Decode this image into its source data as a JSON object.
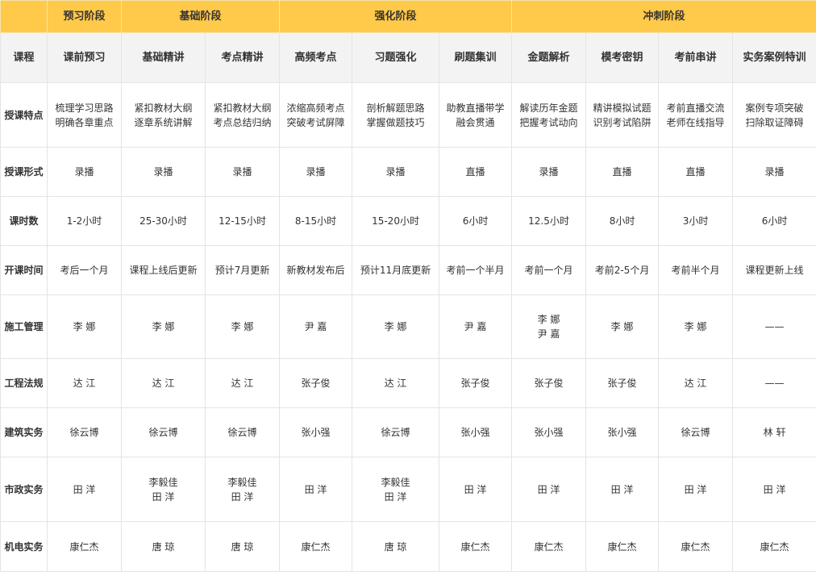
{
  "phases": [
    {
      "label": "",
      "span": 1
    },
    {
      "label": "预习阶段",
      "span": 1
    },
    {
      "label": "基础阶段",
      "span": 2
    },
    {
      "label": "强化阶段",
      "span": 3
    },
    {
      "label": "冲刺阶段",
      "span": 4
    }
  ],
  "course_header": {
    "label": "课程",
    "courses": [
      "课前预习",
      "基础精讲",
      "考点精讲",
      "高频考点",
      "习题强化",
      "刷题集训",
      "金题解析",
      "模考密钥",
      "考前串讲",
      "实务案例特训"
    ]
  },
  "rows": [
    {
      "label": "授课特点",
      "cells": [
        "梳理学习思路\n明确各章重点",
        "紧扣教材大纲\n逐章系统讲解",
        "紧扣教材大纲\n考点总结归纳",
        "浓缩高频考点\n突破考试屏障",
        "剖析解题思路\n掌握做题技巧",
        "助教直播带学\n融会贯通",
        "解读历年金题\n把握考试动向",
        "精讲模拟试题\n识别考试陷阱",
        "考前直播交流\n老师在线指导",
        "案例专项突破\n扫除取证障碍"
      ]
    },
    {
      "label": "授课形式",
      "cells": [
        "录播",
        "录播",
        "录播",
        "录播",
        "录播",
        "直播",
        "录播",
        "直播",
        "直播",
        "录播"
      ]
    },
    {
      "label": "课时数",
      "cells": [
        "1-2小时",
        "25-30小时",
        "12-15小时",
        "8-15小时",
        "15-20小时",
        "6小时",
        "12.5小时",
        "8小时",
        "3小时",
        "6小时"
      ]
    },
    {
      "label": "开课时间",
      "cells": [
        "考后一个月",
        "课程上线后更新",
        "预计7月更新",
        "新教材发布后",
        "预计11月底更新",
        "考前一个半月",
        "考前一个月",
        "考前2-5个月",
        "考前半个月",
        "课程更新上线"
      ]
    },
    {
      "label": "施工管理",
      "cells": [
        "李 娜",
        "李 娜",
        "李 娜",
        "尹 嘉",
        "李 娜",
        "尹 嘉",
        "李 娜\n尹 嘉",
        "李 娜",
        "李 娜",
        "——"
      ]
    },
    {
      "label": "工程法规",
      "cells": [
        "达 江",
        "达 江",
        "达 江",
        "张子俊",
        "达 江",
        "张子俊",
        "张子俊",
        "张子俊",
        "达 江",
        "——"
      ]
    },
    {
      "label": "建筑实务",
      "cells": [
        "徐云博",
        "徐云博",
        "徐云博",
        "张小强",
        "徐云博",
        "张小强",
        "张小强",
        "张小强",
        "徐云博",
        "林 轩"
      ]
    },
    {
      "label": "市政实务",
      "cells": [
        "田 洋",
        "李毅佳\n田 洋",
        "李毅佳\n田 洋",
        "田 洋",
        "李毅佳\n田 洋",
        "田 洋",
        "田 洋",
        "田 洋",
        "田 洋",
        "田 洋"
      ]
    },
    {
      "label": "机电实务",
      "cells": [
        "康仁杰",
        "唐 琼",
        "唐 琼",
        "康仁杰",
        "唐 琼",
        "康仁杰",
        "康仁杰",
        "康仁杰",
        "康仁杰",
        "康仁杰"
      ]
    }
  ],
  "colors": {
    "phase_header_bg": "#ffc94a",
    "course_header_bg": "#f3f3f3",
    "border": "#e4e4e4"
  }
}
